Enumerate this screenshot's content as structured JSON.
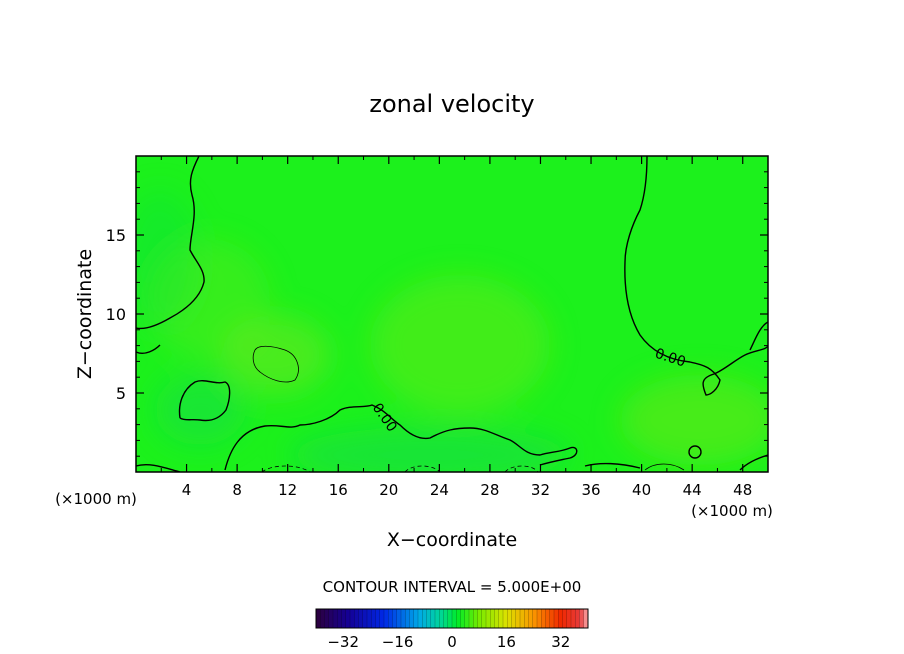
{
  "chart_data": {
    "type": "heatmap",
    "title": "zonal velocity",
    "xlabel": "X−coordinate",
    "ylabel": "Z−coordinate",
    "x_unit_left": "(×1000 m)",
    "x_unit_right": "(×1000 m)",
    "xlim": [
      0,
      50
    ],
    "ylim": [
      0,
      20
    ],
    "x_ticks": [
      4,
      8,
      12,
      16,
      20,
      24,
      28,
      32,
      36,
      40,
      44,
      48
    ],
    "y_ticks": [
      5,
      10,
      15
    ],
    "contour_label": "0.00",
    "contour_interval_text": "CONTOUR INTERVAL = 5.000E+00",
    "colorbar": {
      "range": [
        -40,
        40
      ],
      "ticks": [
        -32,
        -16,
        0,
        16,
        32
      ]
    },
    "grid": false,
    "colors": {
      "field_base": "#1cf11c",
      "positive_tint": "#6fe81c",
      "negative_tint": "#12db4c",
      "contour": "#000000"
    }
  }
}
